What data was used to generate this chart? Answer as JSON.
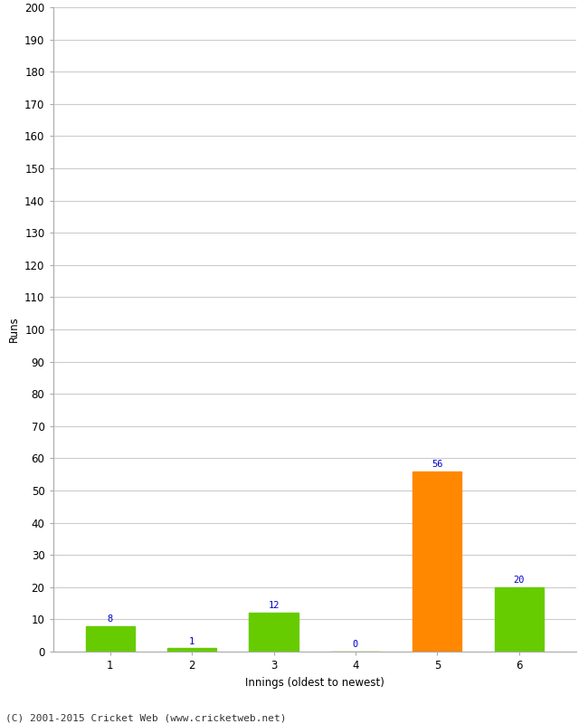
{
  "categories": [
    "1",
    "2",
    "3",
    "4",
    "5",
    "6"
  ],
  "values": [
    8,
    1,
    12,
    0,
    56,
    20
  ],
  "bar_colors": [
    "#66cc00",
    "#66cc00",
    "#66cc00",
    "#66cc00",
    "#ff8800",
    "#66cc00"
  ],
  "xlabel": "Innings (oldest to newest)",
  "ylabel": "Runs",
  "ylim": [
    0,
    200
  ],
  "yticks": [
    0,
    10,
    20,
    30,
    40,
    50,
    60,
    70,
    80,
    90,
    100,
    110,
    120,
    130,
    140,
    150,
    160,
    170,
    180,
    190,
    200
  ],
  "label_color": "#0000cc",
  "label_fontsize": 7.5,
  "footer": "(C) 2001-2015 Cricket Web (www.cricketweb.net)",
  "background_color": "#ffffff",
  "grid_color": "#cccccc",
  "tick_fontsize": 8.5,
  "axis_label_fontsize": 8.5
}
